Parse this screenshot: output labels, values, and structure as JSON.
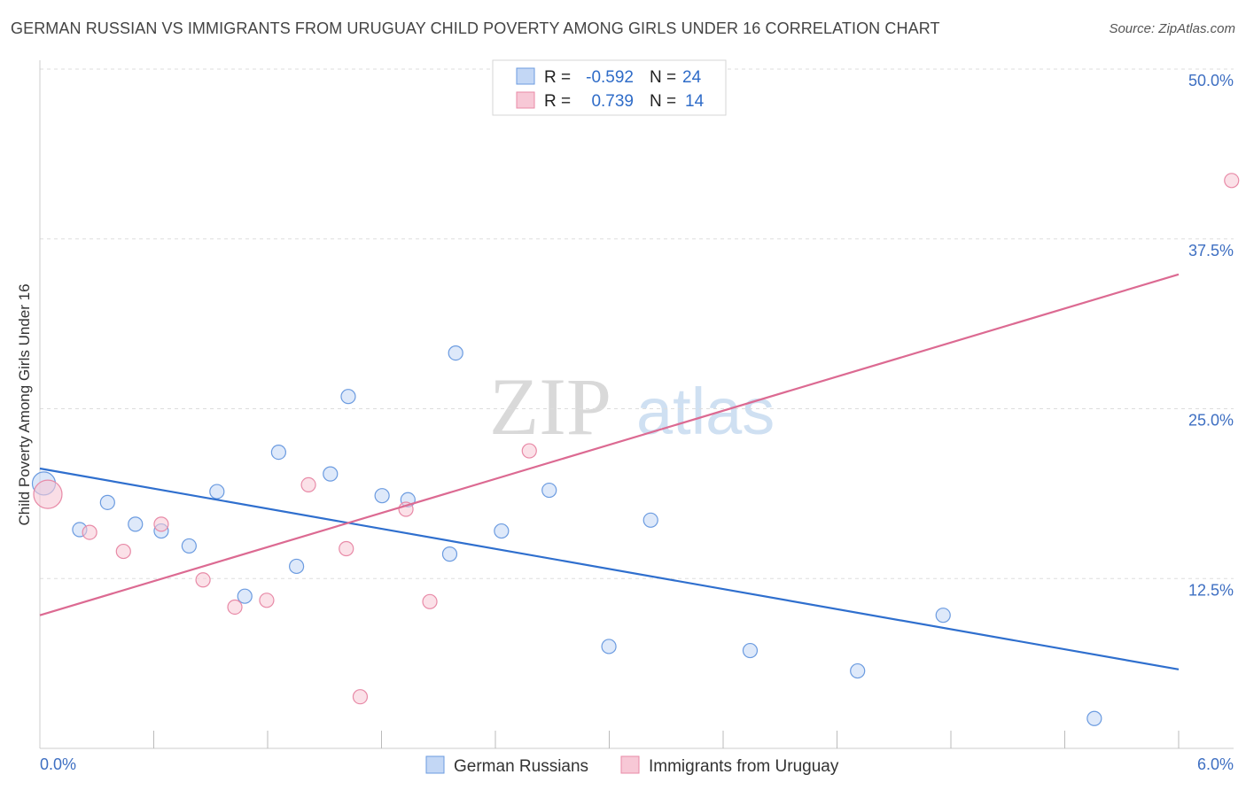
{
  "chart_data": {
    "type": "scatter",
    "title": "GERMAN RUSSIAN VS IMMIGRANTS FROM URUGUAY CHILD POVERTY AMONG GIRLS UNDER 16 CORRELATION CHART",
    "source": "Source: ZipAtlas.com",
    "xlabel": "",
    "ylabel": "Child Poverty Among Girls Under 16",
    "xlim": [
      0,
      6
    ],
    "ylim": [
      0,
      50
    ],
    "x_tick_labels": [
      "0.0%",
      "6.0%"
    ],
    "y_ticks": [
      12.5,
      25.0,
      37.5,
      50.0
    ],
    "y_tick_labels": [
      "12.5%",
      "25.0%",
      "37.5%",
      "50.0%"
    ],
    "watermark": {
      "zip": "ZIP",
      "atlas": "atlas"
    },
    "legend": {
      "rows": [
        {
          "r_label": "R =",
          "r_value": "-0.592",
          "n_label": "N =",
          "n_value": "24"
        },
        {
          "r_label": "R =",
          "r_value": "0.739",
          "n_label": "N =",
          "n_value": "14"
        }
      ]
    },
    "series": [
      {
        "name": "German Russians",
        "color": "#6b9be0",
        "fill": "#c3d7f5",
        "points": [
          [
            0.02,
            19.5
          ],
          [
            0.2,
            16.1
          ],
          [
            0.34,
            18.1
          ],
          [
            0.48,
            16.5
          ],
          [
            0.61,
            16.0
          ],
          [
            0.75,
            14.9
          ],
          [
            0.89,
            18.9
          ],
          [
            1.03,
            11.2
          ],
          [
            1.2,
            21.8
          ],
          [
            1.29,
            13.4
          ],
          [
            1.46,
            20.2
          ],
          [
            1.55,
            25.9
          ],
          [
            1.72,
            18.6
          ],
          [
            1.85,
            18.3
          ],
          [
            2.06,
            14.3
          ],
          [
            2.09,
            29.1
          ],
          [
            2.32,
            16.0
          ],
          [
            2.56,
            19.0
          ],
          [
            2.86,
            7.5
          ],
          [
            3.07,
            16.8
          ],
          [
            3.57,
            7.2
          ],
          [
            4.11,
            5.7
          ],
          [
            4.54,
            9.8
          ],
          [
            5.3,
            2.2
          ]
        ],
        "trend": [
          [
            0.0,
            20.6
          ],
          [
            6.0,
            5.1
          ]
        ]
      },
      {
        "name": "Immigrants from Uruguay",
        "color": "#e88aa7",
        "fill": "#f7c8d6",
        "points": [
          [
            0.04,
            18.7
          ],
          [
            0.25,
            15.9
          ],
          [
            0.42,
            14.5
          ],
          [
            0.61,
            16.5
          ],
          [
            0.82,
            12.4
          ],
          [
            0.98,
            10.4
          ],
          [
            1.14,
            10.9
          ],
          [
            1.35,
            19.4
          ],
          [
            1.54,
            14.7
          ],
          [
            1.61,
            3.8
          ],
          [
            1.84,
            17.6
          ],
          [
            1.96,
            10.8
          ],
          [
            2.46,
            21.9
          ],
          [
            5.99,
            41.8
          ]
        ],
        "trend": [
          [
            0.0,
            9.8
          ],
          [
            6.0,
            36.1
          ]
        ]
      }
    ]
  }
}
